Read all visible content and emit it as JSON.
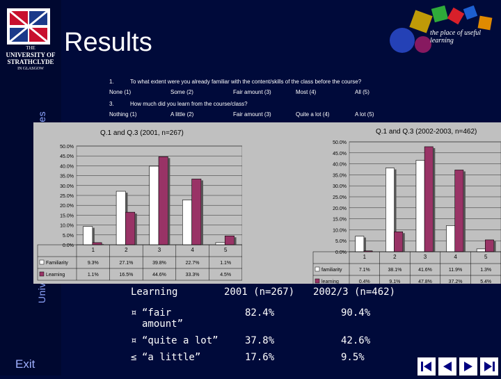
{
  "slide": {
    "title": "Results",
    "sidebar_vertical_text": "University of Strathclyde Library Services",
    "exit_label": "Exit",
    "university_lines": [
      "THE",
      "UNIVERSITY OF",
      "STRATHCLYDE",
      "IN GLASGOW"
    ],
    "brand_tagline": "the place of useful learning"
  },
  "questions": {
    "q1_number": "1.",
    "q1_text": "To what extent were you already familiar with the content/skills of the class before the course?",
    "q1_scale": [
      "None (1)",
      "Some (2)",
      "Fair amount (3)",
      "Most (4)",
      "All (5)"
    ],
    "q3_number": "3.",
    "q3_text": "How much did you learn from the course/class?",
    "q3_scale": [
      "Nothing (1)",
      "A little (2)",
      "Fair amount (3)",
      "Quite a lot (4)",
      "A lot (5)"
    ]
  },
  "chart_data": [
    {
      "type": "bar",
      "title": "Q.1 and Q.3 (2001, n=267)",
      "categories": [
        "1",
        "2",
        "3",
        "4",
        "5"
      ],
      "series": [
        {
          "name": "Familiarity",
          "values": [
            9.3,
            27.1,
            39.8,
            22.7,
            1.1
          ],
          "labels": [
            "9.3%",
            "27.1%",
            "39.8%",
            "22.7%",
            "1.1%"
          ],
          "color": "#ffffff"
        },
        {
          "name": "Learning",
          "values": [
            1.1,
            16.5,
            44.6,
            33.3,
            4.5
          ],
          "labels": [
            "1.1%",
            "16.5%",
            "44.6%",
            "33.3%",
            "4.5%"
          ],
          "color": "#993366"
        }
      ],
      "ylim": [
        0,
        50
      ],
      "yticks": [
        "0.0%",
        "5.0%",
        "10.0%",
        "15.0%",
        "20.0%",
        "25.0%",
        "30.0%",
        "35.0%",
        "40.0%",
        "45.0%",
        "50.0%"
      ],
      "grid": true,
      "legend": "data table"
    },
    {
      "type": "bar",
      "title": "Q.1 and Q.3 (2002-2003, n=462)",
      "categories": [
        "1",
        "2",
        "3",
        "4",
        "5"
      ],
      "series": [
        {
          "name": "familiarity",
          "values": [
            7.1,
            38.1,
            41.6,
            11.9,
            1.3
          ],
          "labels": [
            "7.1%",
            "38.1%",
            "41.6%",
            "11.9%",
            "1.3%"
          ],
          "color": "#ffffff"
        },
        {
          "name": "learning",
          "values": [
            0.4,
            9.1,
            47.8,
            37.2,
            5.4
          ],
          "labels": [
            "0.4%",
            "9.1%",
            "47.8%",
            "37.2%",
            "5.4%"
          ],
          "color": "#993366"
        }
      ],
      "ylim": [
        0,
        50
      ],
      "yticks": [
        "0.0%",
        "5.0%",
        "10.0%",
        "15.0%",
        "20.0%",
        "25.0%",
        "30.0%",
        "35.0%",
        "40.0%",
        "45.0%",
        "50.0%"
      ],
      "grid": true,
      "legend": "data table"
    }
  ],
  "summary": {
    "headers": [
      "Learning",
      "2001 (n=267)",
      "2002/3 (n=462)"
    ],
    "rows": [
      {
        "bullet": "¤",
        "label": "“fair amount”",
        "v2001": "82.4%",
        "v2002": "90.4%"
      },
      {
        "bullet": "¤",
        "label": "“quite a lot”",
        "v2001": "37.8%",
        "v2002": "42.6%"
      },
      {
        "bullet": "≤",
        "label": "“a little”",
        "v2001": "17.6%",
        "v2002": "9.5%"
      }
    ]
  },
  "nav": {
    "colors": {
      "button": "#ffffff",
      "glyph": "#000080"
    },
    "buttons": [
      "first-slide",
      "previous-slide",
      "next-slide",
      "last-slide"
    ]
  }
}
